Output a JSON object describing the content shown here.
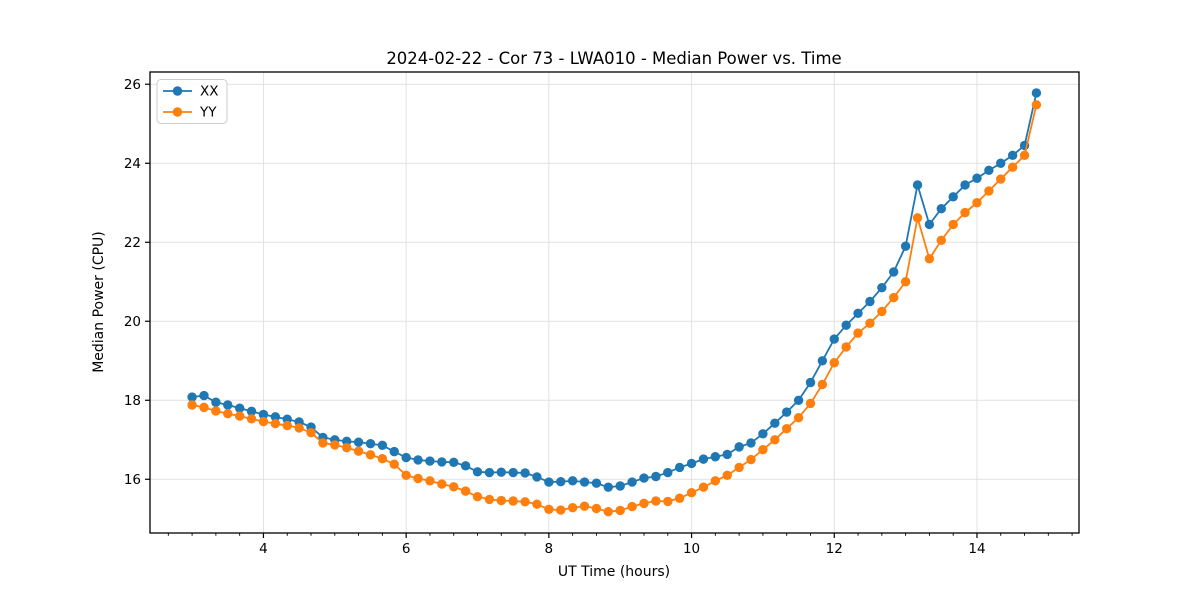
{
  "chart_data": {
    "type": "line",
    "title": "2024-02-22 - Cor 73 - LWA010 - Median Power vs. Time",
    "xlabel": "UT Time (hours)",
    "ylabel": "Median Power (CPU)",
    "xlim": [
      2.41,
      15.43
    ],
    "ylim": [
      14.64,
      26.31
    ],
    "x_major_ticks": [
      4,
      6,
      8,
      10,
      12,
      14
    ],
    "y_major_ticks": [
      16,
      18,
      20,
      22,
      24,
      26
    ],
    "x_minor_step": 0.333333,
    "grid": "major-both",
    "legend_position": "upper-left",
    "colors": {
      "xx": "#1f77b4",
      "yy": "#ff7f0e",
      "grid": "#e2e2e2",
      "spine": "#000000",
      "legend_border": "#cccccc"
    },
    "x": [
      3.0,
      3.167,
      3.333,
      3.5,
      3.667,
      3.833,
      4.0,
      4.167,
      4.333,
      4.5,
      4.667,
      4.833,
      5.0,
      5.167,
      5.333,
      5.5,
      5.667,
      5.833,
      6.0,
      6.167,
      6.333,
      6.5,
      6.667,
      6.833,
      7.0,
      7.167,
      7.333,
      7.5,
      7.667,
      7.833,
      8.0,
      8.167,
      8.333,
      8.5,
      8.667,
      8.833,
      9.0,
      9.167,
      9.333,
      9.5,
      9.667,
      9.833,
      10.0,
      10.167,
      10.333,
      10.5,
      10.667,
      10.833,
      11.0,
      11.167,
      11.333,
      11.5,
      11.667,
      11.833,
      12.0,
      12.167,
      12.333,
      12.5,
      12.667,
      12.833,
      13.0,
      13.167,
      13.333,
      13.5,
      13.667,
      13.833,
      14.0,
      14.167,
      14.333,
      14.5,
      14.667,
      14.833
    ],
    "series": [
      {
        "name": "XX",
        "color_key": "xx",
        "values": [
          18.08,
          18.12,
          17.95,
          17.88,
          17.8,
          17.72,
          17.64,
          17.58,
          17.52,
          17.45,
          17.32,
          17.06,
          17.0,
          16.96,
          16.94,
          16.9,
          16.86,
          16.7,
          16.55,
          16.49,
          16.46,
          16.44,
          16.43,
          16.34,
          16.19,
          16.17,
          16.18,
          16.17,
          16.16,
          16.06,
          15.93,
          15.94,
          15.96,
          15.93,
          15.9,
          15.8,
          15.83,
          15.93,
          16.03,
          16.07,
          16.17,
          16.3,
          16.4,
          16.51,
          16.57,
          16.63,
          16.82,
          16.92,
          17.15,
          17.42,
          17.7,
          18.0,
          18.45,
          19.0,
          19.55,
          19.9,
          20.2,
          20.5,
          20.85,
          21.25,
          21.9,
          23.45,
          22.45,
          22.85,
          23.15,
          23.45,
          23.62,
          23.82,
          24.0,
          24.2,
          24.45,
          25.78
        ]
      },
      {
        "name": "YY",
        "color_key": "yy",
        "values": [
          17.88,
          17.82,
          17.73,
          17.66,
          17.6,
          17.53,
          17.46,
          17.41,
          17.36,
          17.3,
          17.18,
          16.92,
          16.87,
          16.8,
          16.71,
          16.62,
          16.52,
          16.38,
          16.1,
          16.02,
          15.96,
          15.88,
          15.81,
          15.7,
          15.56,
          15.49,
          15.46,
          15.45,
          15.43,
          15.37,
          15.24,
          15.22,
          15.28,
          15.32,
          15.26,
          15.18,
          15.21,
          15.31,
          15.39,
          15.45,
          15.44,
          15.52,
          15.66,
          15.8,
          15.96,
          16.1,
          16.3,
          16.5,
          16.75,
          17.0,
          17.28,
          17.56,
          17.92,
          18.4,
          18.95,
          19.35,
          19.7,
          19.95,
          20.25,
          20.6,
          21.0,
          22.62,
          21.58,
          22.05,
          22.45,
          22.75,
          23.0,
          23.3,
          23.6,
          23.9,
          24.2,
          25.48
        ]
      }
    ]
  }
}
